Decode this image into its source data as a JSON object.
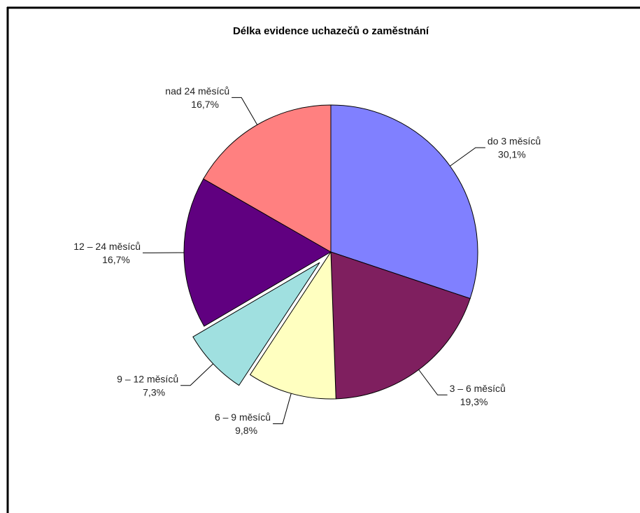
{
  "chart_data": {
    "type": "pie",
    "title": "Délka evidence uchazečů o zaměstnání",
    "categories": [
      "do 3 měsíců",
      "3 – 6 měsíců",
      "6 – 9 měsíců",
      "9 – 12 měsíců",
      "12 – 24 měsíců",
      "nad 24 měsíců"
    ],
    "values": [
      30.1,
      19.3,
      9.8,
      7.3,
      16.7,
      16.7
    ],
    "value_labels": [
      "30,1%",
      "19,3%",
      "9,8%",
      "7,3%",
      "16,7%",
      "16,7%"
    ],
    "colors": [
      "#8080ff",
      "#7f1f5f",
      "#ffffc0",
      "#a0e0e0",
      "#600080",
      "#ff8080"
    ],
    "exploded": 3
  }
}
